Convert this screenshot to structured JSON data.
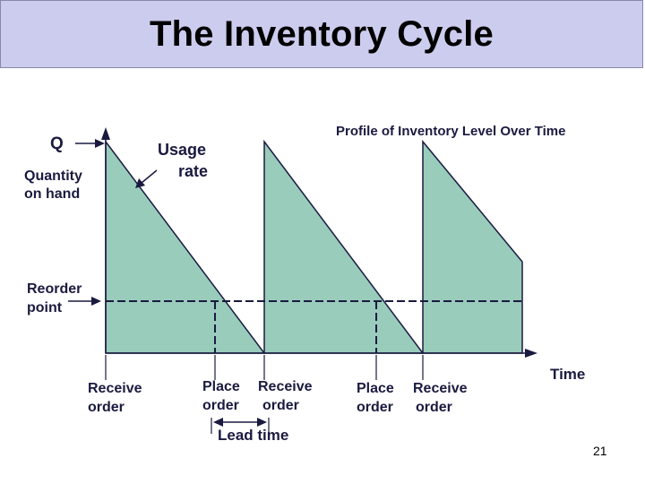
{
  "title": "The Inventory Cycle",
  "labels": {
    "profile": "Profile of Inventory Level Over Time",
    "q": "Q",
    "quantity_line1": "Quantity",
    "quantity_line2": "on hand",
    "usage_line1": "Usage",
    "usage_line2": "rate",
    "reorder_line1": "Reorder",
    "reorder_line2": "point",
    "receive1_line1": "Receive",
    "receive1_line2": "order",
    "place1_line1": "Place",
    "place1_line2": "order",
    "receive2_line1": "Receive",
    "receive2_line2": "order",
    "place2_line1": "Place",
    "place2_line2": "order",
    "receive3_line1": "Receive",
    "receive3_line2": "order",
    "lead_time": "Lead time",
    "time": "Time"
  },
  "page_number": "21",
  "colors": {
    "title_bg": "#ccccee",
    "fill": "#99ccbb",
    "stroke": "#1a1a40",
    "text": "#1a1a40"
  }
}
